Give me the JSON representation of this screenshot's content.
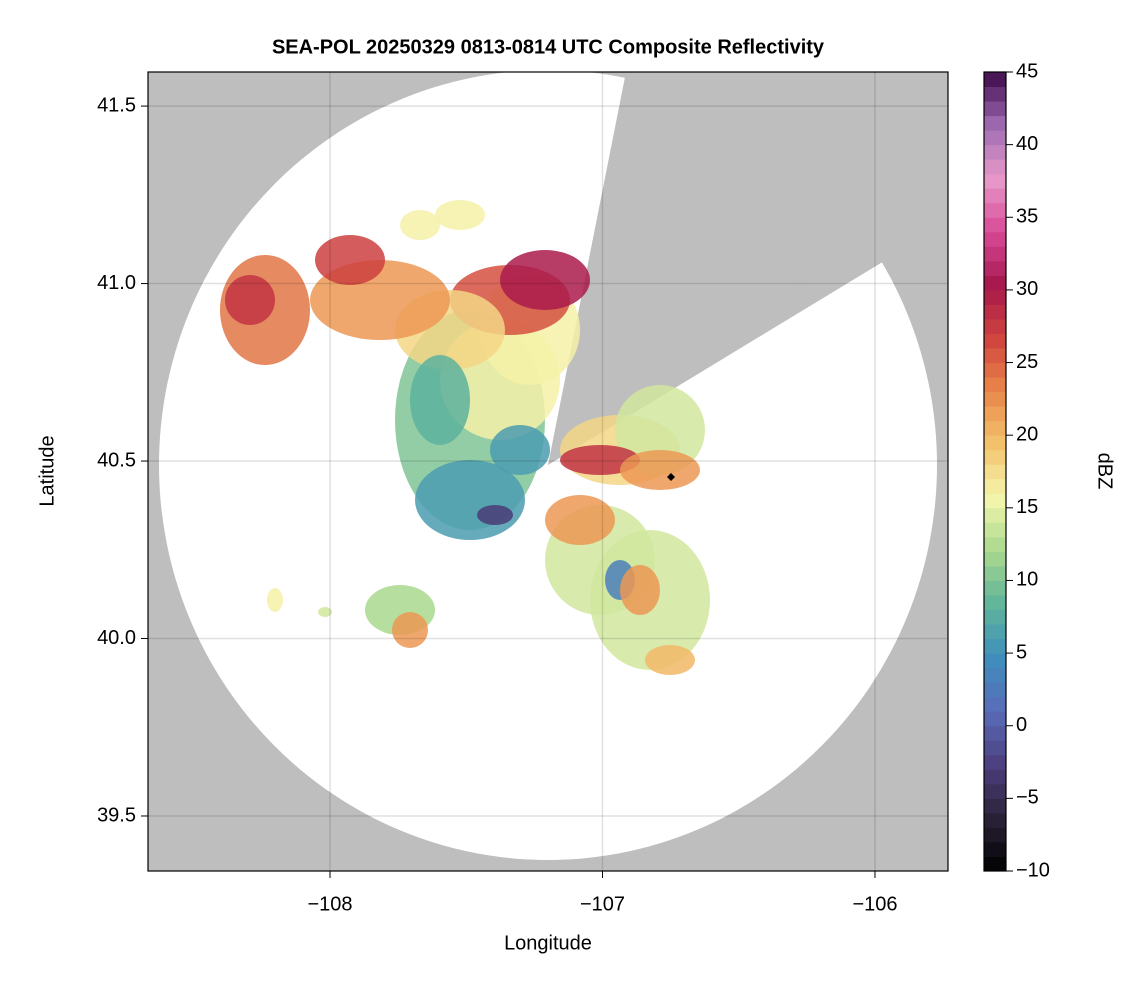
{
  "chart_data": {
    "type": "heatmap",
    "title": "SEA-POL 20250329 0813-0814 UTC Composite Reflectivity",
    "x_label": "Longitude",
    "y_label": "Latitude",
    "xlim": [
      -108.668,
      -105.732
    ],
    "ylim": [
      39.345,
      41.596
    ],
    "xticks": [
      {
        "value": -108,
        "label": "−108"
      },
      {
        "value": -107,
        "label": "−107"
      },
      {
        "value": -106,
        "label": "−106"
      }
    ],
    "yticks": [
      39.5,
      {
        "value": 40,
        "label": "40.0"
      },
      40.5,
      {
        "value": 41,
        "label": "41.0"
      },
      41.5
    ],
    "grid": true,
    "background_color": "#bebebe",
    "colorbar": {
      "label": "dBZ",
      "clim": [
        -10,
        45
      ],
      "ticks": [
        {
          "value": -10,
          "label": "−10"
        },
        {
          "value": -5,
          "label": "−5"
        },
        0,
        5,
        10,
        15,
        20,
        25,
        30,
        35,
        40,
        45
      ],
      "colors": [
        "#000000",
        "#2a2238",
        "#4c3f7e",
        "#5a6bb8",
        "#3f8fbd",
        "#5fb49a",
        "#a8d88e",
        "#f4f6ad",
        "#f3c46e",
        "#e9884a",
        "#d0443e",
        "#a6174d",
        "#d84a97",
        "#e79ac9",
        "#9f6bb2",
        "#3d0a4a"
      ]
    }
  }
}
